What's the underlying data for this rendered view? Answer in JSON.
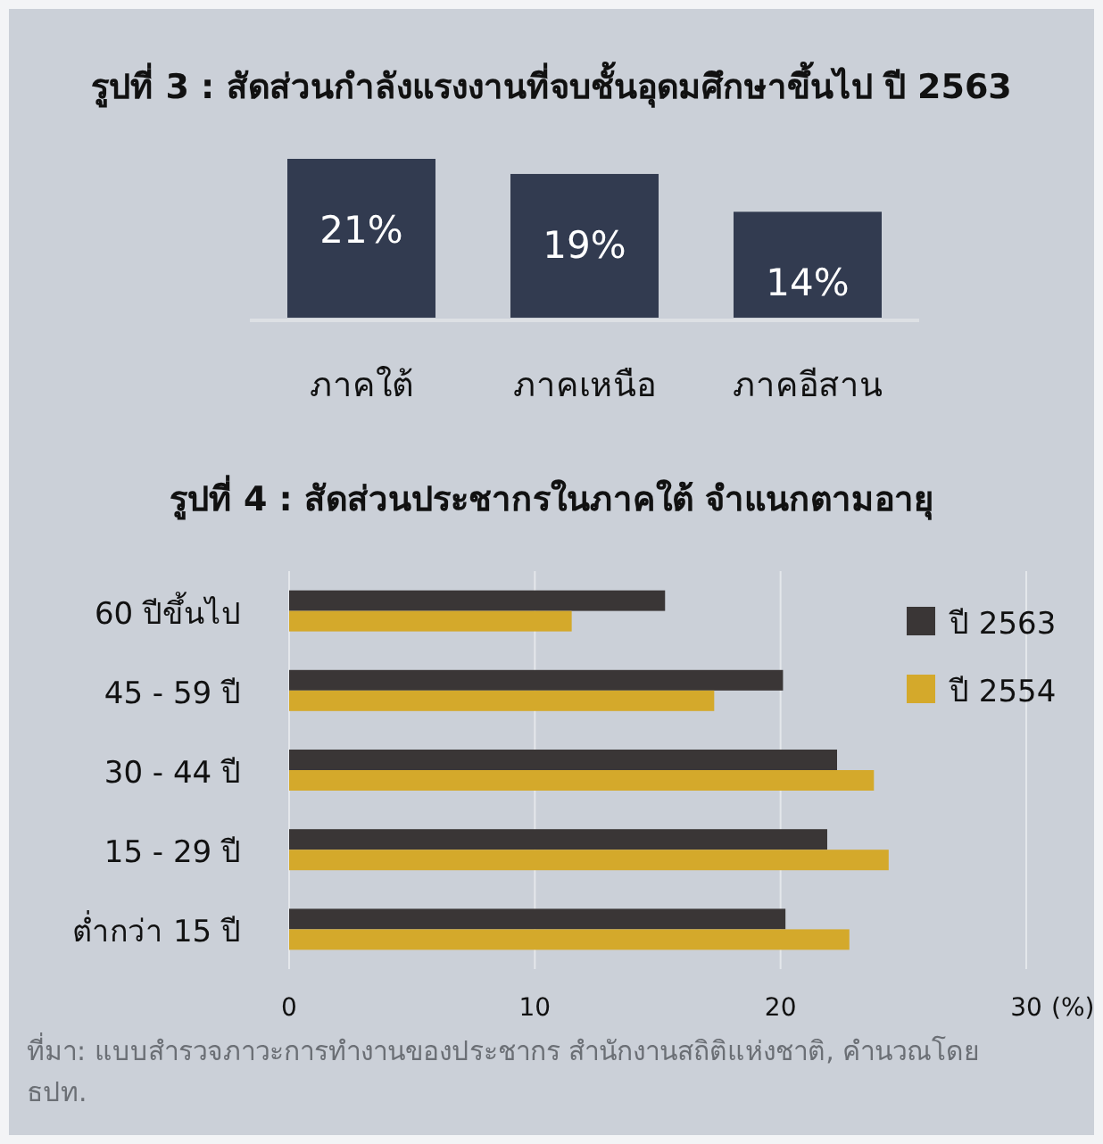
{
  "chart_data": [
    {
      "type": "bar",
      "title": "รูปที่ 3 : สัดส่วนกำลังแรงงานที่จบชั้นอุดมศึกษาขึ้นไป ปี 2563",
      "categories": [
        "ภาคใต้",
        "ภาคเหนือ",
        "ภาคอีสาน"
      ],
      "values": [
        21,
        19,
        14
      ],
      "color": "#323b50",
      "value_labels": [
        "21%",
        "19%",
        "14%"
      ]
    },
    {
      "type": "bar",
      "orientation": "horizontal",
      "title": "รูปที่ 4 : สัดส่วนประชากรในภาคใต้ จำแนกตามอายุ",
      "xlabel": "(%)",
      "categories": [
        "60 ปีขึ้นไป",
        "45 - 59 ปี",
        "30 - 44 ปี",
        "15 - 29 ปี",
        "ต่ำกว่า 15 ปี"
      ],
      "series": [
        {
          "name": "ปี 2563",
          "color": "#3a3636",
          "values": [
            15.3,
            20.1,
            22.3,
            21.9,
            20.2
          ]
        },
        {
          "name": "ปี 2554",
          "color": "#d4a92b",
          "values": [
            11.5,
            17.3,
            23.8,
            24.4,
            22.8
          ]
        }
      ],
      "xlim": [
        0,
        30
      ],
      "xticks": [
        0,
        10,
        20,
        30
      ],
      "grid": "x",
      "legend": "right",
      "annotations": [
        "ที่มา: แบบสำรวจภาวะการทำงานของประชากร สำนักงานสถิติแห่งชาติ, คำนวณโดย ธปท."
      ]
    }
  ]
}
